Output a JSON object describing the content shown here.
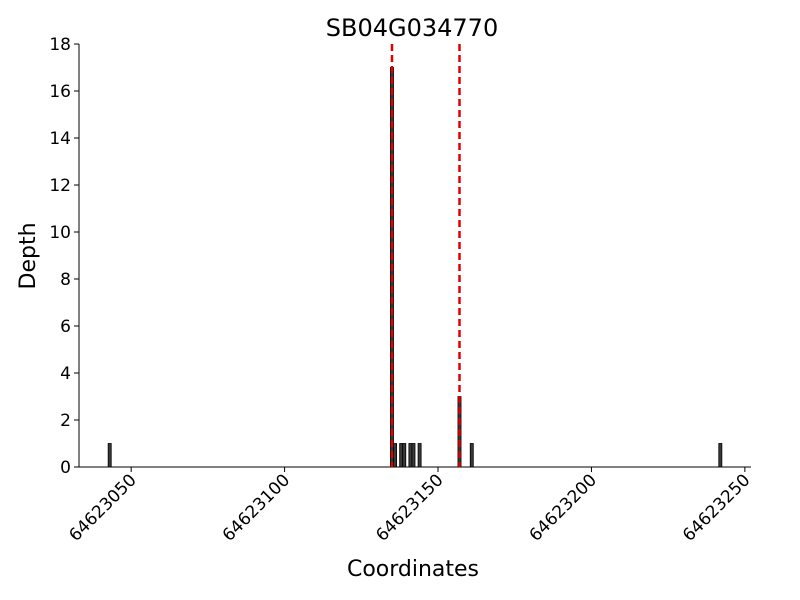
{
  "chart_data": {
    "type": "bar",
    "title": "SB04G034770",
    "x_label": "Coordinates",
    "y_label": "Depth",
    "x": [
      64623043,
      64623135,
      64623136,
      64623138,
      64623139,
      64623141,
      64623142,
      64623144,
      64623157,
      64623161,
      64623242
    ],
    "values": [
      1,
      17,
      1,
      1,
      1,
      1,
      1,
      1,
      3,
      1,
      1
    ],
    "color": "#3a3a3a",
    "vlines": [
      {
        "value": 64623135,
        "color": "#e00000"
      },
      {
        "value": 64623157,
        "color": "#e00000"
      }
    ],
    "xlim": [
      64623033,
      64623252
    ],
    "ylim": [
      0,
      18
    ],
    "xticks": [
      64623050,
      64623100,
      64623150,
      64623200,
      64623250
    ],
    "yticks": [
      0,
      2,
      4,
      6,
      8,
      10,
      12,
      14,
      16,
      18
    ],
    "grid": false
  }
}
